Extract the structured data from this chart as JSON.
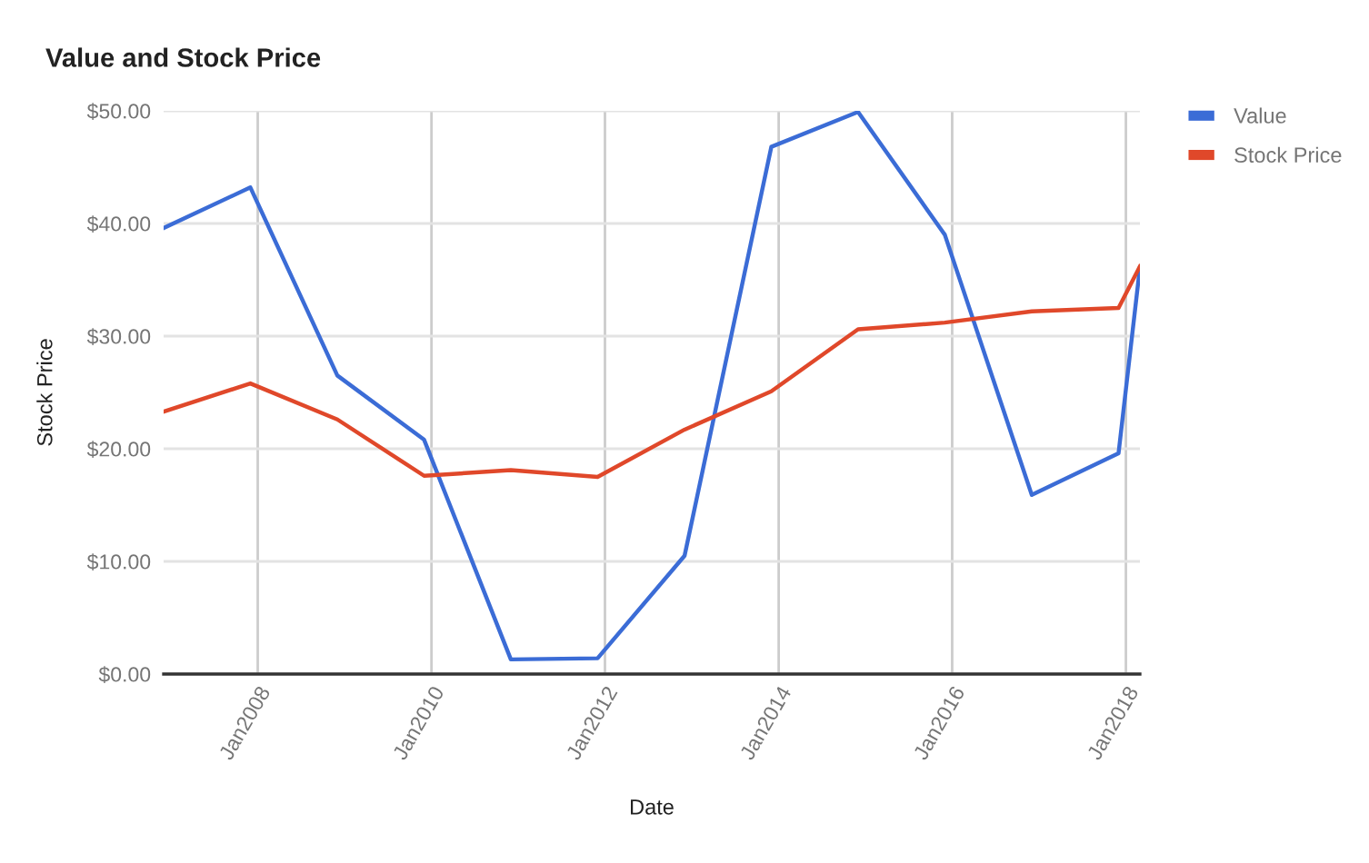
{
  "chart_data": {
    "type": "line",
    "title": "Value and Stock Price",
    "xlabel": "Date",
    "ylabel": "Stock Price",
    "x": [
      "2006-12",
      "2007-12",
      "2008-12",
      "2009-12",
      "2010-12",
      "2011-12",
      "2012-12",
      "2013-12",
      "2014-12",
      "2015-12",
      "2016-12",
      "2017-12",
      "2018-03"
    ],
    "series": [
      {
        "name": "Value",
        "color": "#3b6cd6",
        "values": [
          39.6,
          43.2,
          26.5,
          20.8,
          1.3,
          1.4,
          10.5,
          46.8,
          49.9,
          39.0,
          15.9,
          19.6,
          36.1
        ]
      },
      {
        "name": "Stock Price",
        "color": "#e0482a",
        "values": [
          23.3,
          25.8,
          22.6,
          17.6,
          18.1,
          17.5,
          21.7,
          25.1,
          30.6,
          31.2,
          32.2,
          32.5,
          36.2
        ]
      }
    ],
    "xlim": [
      "2006-12",
      "2018-03"
    ],
    "xticks": [
      {
        "value": "2008-01",
        "label": "Jan2008"
      },
      {
        "value": "2010-01",
        "label": "Jan2010"
      },
      {
        "value": "2012-01",
        "label": "Jan2012"
      },
      {
        "value": "2014-01",
        "label": "Jan2014"
      },
      {
        "value": "2016-01",
        "label": "Jan2016"
      },
      {
        "value": "2018-01",
        "label": "Jan2018"
      }
    ],
    "ylim": [
      0,
      50
    ],
    "yticks": [
      {
        "value": 0,
        "label": "$0.00"
      },
      {
        "value": 10,
        "label": "$10.00"
      },
      {
        "value": 20,
        "label": "$20.00"
      },
      {
        "value": 30,
        "label": "$30.00"
      },
      {
        "value": 40,
        "label": "$40.00"
      },
      {
        "value": 50,
        "label": "$50.00"
      }
    ],
    "grid": true,
    "legend": "top right",
    "marker": "none",
    "line_style": "solid"
  }
}
